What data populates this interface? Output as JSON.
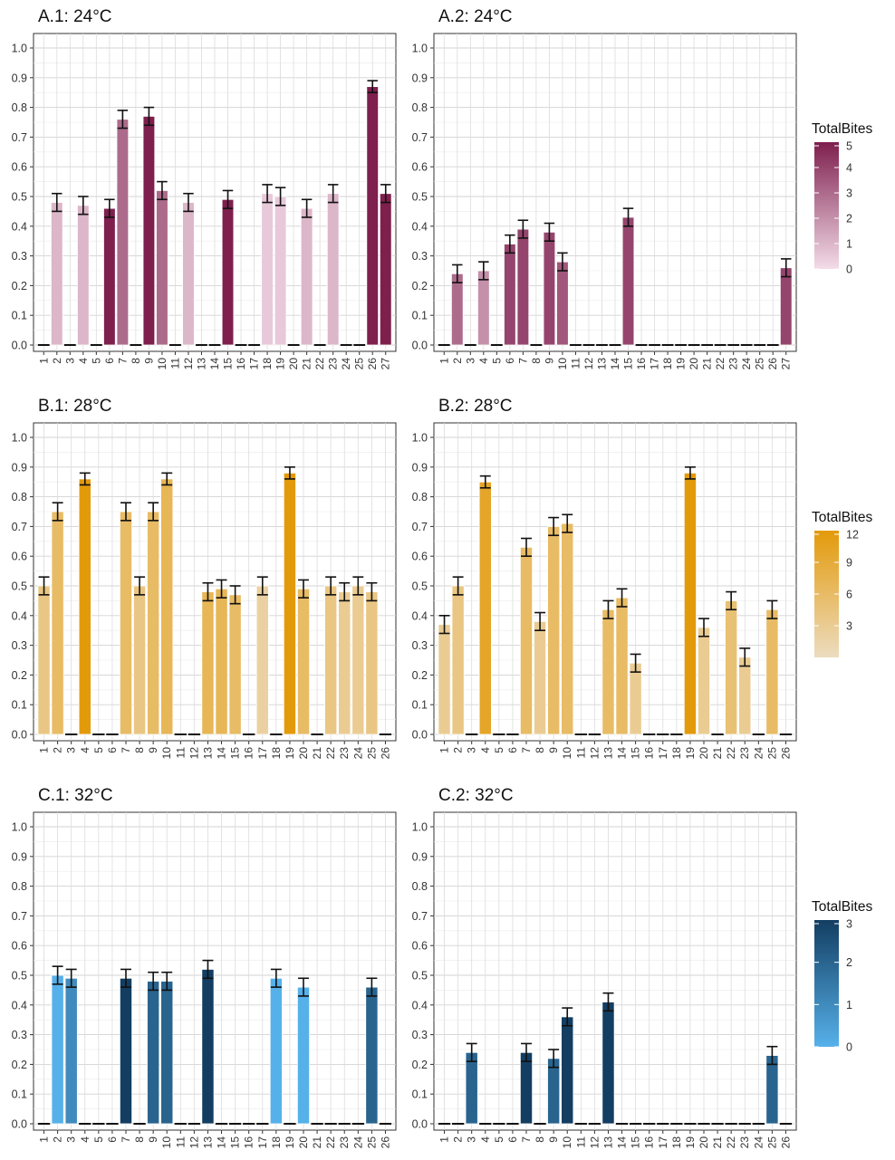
{
  "legend_title": "TotalBites",
  "chart_data": [
    {
      "type": "bar",
      "title": "A.1: 24°C",
      "categories": [
        "1",
        "2",
        "3",
        "4",
        "5",
        "6",
        "7",
        "8",
        "9",
        "10",
        "11",
        "12",
        "13",
        "14",
        "15",
        "16",
        "17",
        "18",
        "19",
        "20",
        "21",
        "22",
        "23",
        "24",
        "25",
        "26",
        "27"
      ],
      "values": [
        0,
        0.48,
        0,
        0.47,
        0,
        0.46,
        0.76,
        0,
        0.77,
        0.52,
        0,
        0.48,
        0,
        0,
        0.49,
        0,
        0,
        0.51,
        0.5,
        0,
        0.46,
        0,
        0.51,
        0,
        0,
        0.87,
        0.51
      ],
      "errors": [
        0,
        0.03,
        0,
        0.03,
        0,
        0.03,
        0.03,
        0,
        0.03,
        0.03,
        0,
        0.03,
        0,
        0,
        0.03,
        0,
        0,
        0.03,
        0.03,
        0,
        0.03,
        0,
        0.03,
        0,
        0,
        0.02,
        0.03
      ],
      "bites": [
        0,
        1,
        0,
        1,
        0,
        5,
        3,
        0,
        5,
        3,
        0,
        1,
        0,
        0,
        5,
        0,
        0,
        0.5,
        0.5,
        0,
        1,
        0,
        1,
        0,
        0,
        5,
        5
      ],
      "ylim": [
        0,
        1.0
      ],
      "yticks": [
        "0.0",
        "0.1",
        "0.2",
        "0.3",
        "0.4",
        "0.5",
        "0.6",
        "0.7",
        "0.8",
        "0.9",
        "1.0"
      ],
      "legend": "A"
    },
    {
      "type": "bar",
      "title": "A.2: 24°C",
      "categories": [
        "1",
        "2",
        "3",
        "4",
        "5",
        "6",
        "7",
        "8",
        "9",
        "10",
        "11",
        "12",
        "13",
        "14",
        "15",
        "16",
        "17",
        "18",
        "19",
        "20",
        "21",
        "22",
        "23",
        "24",
        "25",
        "26",
        "27"
      ],
      "values": [
        0,
        0.24,
        0,
        0.25,
        0,
        0.34,
        0.39,
        0,
        0.38,
        0.28,
        0,
        0,
        0,
        0,
        0.43,
        0,
        0,
        0,
        0,
        0,
        0,
        0,
        0,
        0,
        0,
        0,
        0.26
      ],
      "errors": [
        0,
        0.03,
        0,
        0.03,
        0,
        0.03,
        0.03,
        0,
        0.03,
        0.03,
        0,
        0,
        0,
        0,
        0.03,
        0,
        0,
        0,
        0,
        0,
        0,
        0,
        0,
        0,
        0,
        0,
        0.03
      ],
      "bites": [
        0,
        3,
        0,
        2,
        0,
        4,
        4,
        0,
        4,
        3.5,
        0,
        0,
        0,
        0,
        4,
        0,
        0,
        0,
        0,
        0,
        0,
        0,
        0,
        0,
        0,
        0,
        4
      ],
      "ylim": [
        0,
        1.0
      ],
      "yticks": [
        "0.0",
        "0.1",
        "0.2",
        "0.3",
        "0.4",
        "0.5",
        "0.6",
        "0.7",
        "0.8",
        "0.9",
        "1.0"
      ],
      "legend": null
    },
    {
      "type": "bar",
      "title": "B.1: 28°C",
      "categories": [
        "1",
        "2",
        "3",
        "4",
        "5",
        "6",
        "7",
        "8",
        "9",
        "10",
        "11",
        "12",
        "13",
        "14",
        "15",
        "16",
        "17",
        "18",
        "19",
        "20",
        "21",
        "22",
        "23",
        "24",
        "25",
        "26"
      ],
      "values": [
        0.5,
        0.75,
        0,
        0.86,
        0,
        0,
        0.75,
        0.5,
        0.75,
        0.86,
        0,
        0,
        0.48,
        0.49,
        0.47,
        0,
        0.5,
        0,
        0.88,
        0.49,
        0,
        0.5,
        0.48,
        0.5,
        0.48,
        0
      ],
      "errors": [
        0.03,
        0.03,
        0,
        0.02,
        0,
        0,
        0.03,
        0.03,
        0.03,
        0.02,
        0,
        0,
        0.03,
        0.03,
        0.03,
        0,
        0.03,
        0,
        0.02,
        0.03,
        0,
        0.03,
        0.03,
        0.03,
        0.03,
        0
      ],
      "bites": [
        4,
        6,
        0,
        12,
        0,
        0,
        6,
        4,
        6,
        7,
        0,
        0,
        7,
        7,
        6,
        0,
        2,
        0,
        12,
        6,
        0,
        4,
        3,
        3,
        4,
        0
      ],
      "ylim": [
        0,
        1.0
      ],
      "yticks": [
        "0.0",
        "0.1",
        "0.2",
        "0.3",
        "0.4",
        "0.5",
        "0.6",
        "0.7",
        "0.8",
        "0.9",
        "1.0"
      ],
      "legend": null
    },
    {
      "type": "bar",
      "title": "B.2: 28°C",
      "categories": [
        "1",
        "2",
        "3",
        "4",
        "5",
        "6",
        "7",
        "8",
        "9",
        "10",
        "11",
        "12",
        "13",
        "14",
        "15",
        "16",
        "17",
        "18",
        "19",
        "20",
        "21",
        "22",
        "23",
        "24",
        "25",
        "26"
      ],
      "values": [
        0.37,
        0.5,
        0,
        0.85,
        0,
        0,
        0.63,
        0.38,
        0.7,
        0.71,
        0,
        0,
        0.42,
        0.46,
        0.24,
        0,
        0,
        0,
        0.88,
        0.36,
        0,
        0.45,
        0.26,
        0,
        0.42,
        0
      ],
      "errors": [
        0.03,
        0.03,
        0,
        0.02,
        0,
        0,
        0.03,
        0.03,
        0.03,
        0.03,
        0,
        0,
        0.03,
        0.03,
        0.03,
        0,
        0,
        0,
        0.02,
        0.03,
        0,
        0.03,
        0.03,
        0,
        0.03,
        0
      ],
      "bites": [
        3,
        4,
        0,
        10,
        0,
        0,
        6,
        3,
        6,
        6,
        0,
        0,
        6,
        6,
        3,
        0,
        0,
        0,
        12,
        3,
        0,
        5,
        3,
        0,
        6,
        0
      ],
      "ylim": [
        0,
        1.0
      ],
      "yticks": [
        "0.0",
        "0.1",
        "0.2",
        "0.3",
        "0.4",
        "0.5",
        "0.6",
        "0.7",
        "0.8",
        "0.9",
        "1.0"
      ],
      "legend": "B"
    },
    {
      "type": "bar",
      "title": "C.1: 32°C",
      "categories": [
        "1",
        "2",
        "3",
        "4",
        "5",
        "6",
        "7",
        "8",
        "9",
        "10",
        "11",
        "12",
        "13",
        "14",
        "15",
        "16",
        "17",
        "18",
        "19",
        "20",
        "21",
        "22",
        "23",
        "24",
        "25",
        "26"
      ],
      "values": [
        0,
        0.5,
        0.49,
        0,
        0,
        0,
        0.49,
        0,
        0.48,
        0.48,
        0,
        0,
        0.52,
        0,
        0,
        0,
        0,
        0.49,
        0,
        0.46,
        0,
        0,
        0,
        0,
        0.46,
        0
      ],
      "errors": [
        0,
        0.03,
        0.03,
        0,
        0,
        0,
        0.03,
        0,
        0.03,
        0.03,
        0,
        0,
        0.03,
        0,
        0,
        0,
        0,
        0.03,
        0,
        0.03,
        0,
        0,
        0,
        0,
        0.03,
        0
      ],
      "bites": [
        0,
        0,
        1,
        0,
        0,
        0,
        3,
        0,
        2,
        2,
        0,
        0,
        3,
        0,
        0,
        0,
        0,
        0,
        0,
        0,
        0,
        0,
        0,
        0,
        2,
        0
      ],
      "ylim": [
        0,
        1.0
      ],
      "yticks": [
        "0.0",
        "0.1",
        "0.2",
        "0.3",
        "0.4",
        "0.5",
        "0.6",
        "0.7",
        "0.8",
        "0.9",
        "1.0"
      ],
      "legend": null
    },
    {
      "type": "bar",
      "title": "C.2: 32°C",
      "categories": [
        "1",
        "2",
        "3",
        "4",
        "5",
        "6",
        "7",
        "8",
        "9",
        "10",
        "11",
        "12",
        "13",
        "14",
        "15",
        "16",
        "17",
        "18",
        "19",
        "20",
        "21",
        "22",
        "23",
        "24",
        "25",
        "26"
      ],
      "values": [
        0,
        0,
        0.24,
        0,
        0,
        0,
        0.24,
        0,
        0.22,
        0.36,
        0,
        0,
        0.41,
        0,
        0,
        0,
        0,
        0,
        0,
        0,
        0,
        0,
        0,
        0,
        0.23,
        0
      ],
      "errors": [
        0,
        0,
        0.03,
        0,
        0,
        0,
        0.03,
        0,
        0.03,
        0.03,
        0,
        0,
        0.03,
        0,
        0,
        0,
        0,
        0,
        0,
        0,
        0,
        0,
        0,
        0,
        0.03,
        0
      ],
      "bites": [
        0,
        0,
        2,
        0,
        0,
        0,
        3,
        0,
        2,
        3,
        0,
        0,
        3,
        0,
        0,
        0,
        0,
        0,
        0,
        0,
        0,
        0,
        0,
        0,
        2,
        0
      ],
      "ylim": [
        0,
        1.0
      ],
      "yticks": [
        "0.0",
        "0.1",
        "0.2",
        "0.3",
        "0.4",
        "0.5",
        "0.6",
        "0.7",
        "0.8",
        "0.9",
        "1.0"
      ],
      "legend": "C"
    }
  ],
  "legends": {
    "A": {
      "title": "TotalBites",
      "labels": [
        "5",
        "4",
        "3",
        "2",
        "1",
        "0"
      ],
      "min": 0,
      "max": 5,
      "color_low": "#f3dce8",
      "color_high": "#7e1f4e"
    },
    "B": {
      "title": "TotalBites",
      "labels": [
        "12",
        "9",
        "6",
        "3"
      ],
      "min": 0,
      "max": 12,
      "color_low": "#ecdcc0",
      "color_high": "#e39a0a"
    },
    "C": {
      "title": "TotalBites",
      "labels": [
        "3",
        "2",
        "1",
        "0"
      ],
      "min": 0,
      "max": 3,
      "color_low": "#56b1ea",
      "color_high": "#133e62"
    }
  }
}
